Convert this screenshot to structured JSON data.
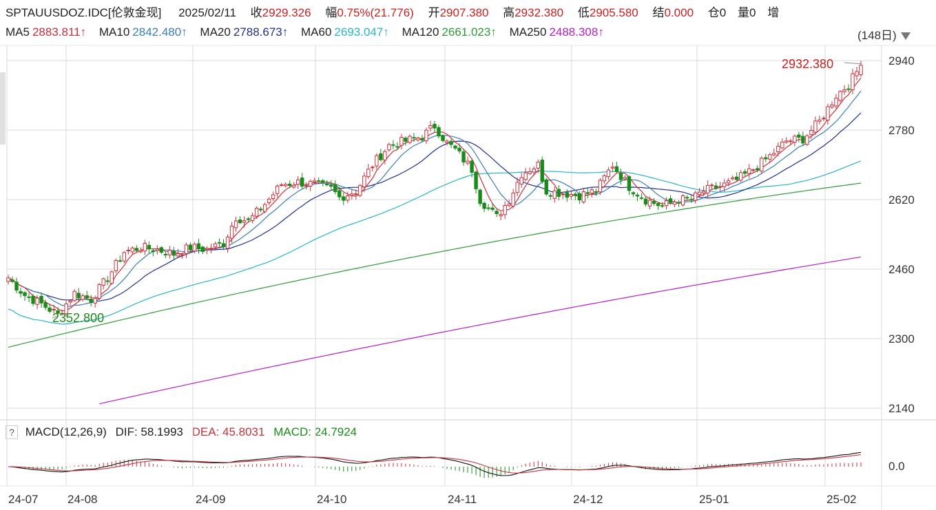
{
  "header": {
    "symbol": "SPTAUUSDOZ.IDC[伦敦金现]",
    "date": "2025/02/11",
    "close_label": "收",
    "close_value": "2929.326",
    "change_label": "幅",
    "change_value": "0.75%(21.776)",
    "open_label": "开",
    "open_value": "2907.380",
    "high_label": "高",
    "high_value": "2932.380",
    "low_label": "低",
    "low_value": "2905.580",
    "settle_label": "结",
    "settle_value": "0.000",
    "position_label": "仓",
    "position_value": "0",
    "volume_label": "量",
    "volume_value": "0",
    "increase_label": "增"
  },
  "ma_bar": {
    "items": [
      {
        "label": "MA5",
        "value": "2883.811↑",
        "color": "#c8303a"
      },
      {
        "label": "MA10",
        "value": "2842.480↑",
        "color": "#3a7db5"
      },
      {
        "label": "MA20",
        "value": "2788.673↑",
        "color": "#1f2f8a"
      },
      {
        "label": "MA60",
        "value": "2693.047↑",
        "color": "#2bb4c8"
      },
      {
        "label": "MA120",
        "value": "2661.023↑",
        "color": "#2e9a38"
      },
      {
        "label": "MA250",
        "value": "2488.308↑",
        "color": "#b21fc0"
      }
    ],
    "period": "(148日)"
  },
  "macd_bar": {
    "help": "?",
    "title": "MACD(12,26,9)",
    "dif_label": "DIF: 58.1993",
    "dea_label": "DEA: 45.8031",
    "macd_label": "MACD: 24.7924"
  },
  "colors": {
    "up": "#c8303a",
    "down": "#1a8a1a",
    "grid": "#d8d8d8",
    "ma5": "#c8303a",
    "ma10": "#3a7db5",
    "ma20": "#1f2f8a",
    "ma60": "#2bb4c8",
    "ma120": "#2e9a38",
    "ma250": "#b21fc0",
    "dif": "#111111",
    "dea": "#c8303a"
  },
  "chart_data": [
    {
      "type": "candlestick",
      "title": "SPTAUUSDOZ.IDC[伦敦金现]",
      "y_ticks": [
        "2940",
        "2780",
        "2620",
        "2460",
        "2300",
        "2140"
      ],
      "ylim": [
        2120,
        2960
      ],
      "x_tick_labels": [
        "24-07",
        "24-08",
        "24-09",
        "24-10",
        "24-11",
        "24-12",
        "25-01",
        "25-02"
      ],
      "annotations": {
        "high_label": "2932.380",
        "low_label": "2352.800"
      },
      "anchors": [
        [
          0,
          2440
        ],
        [
          4,
          2400
        ],
        [
          8,
          2380
        ],
        [
          12,
          2355
        ],
        [
          16,
          2405
        ],
        [
          20,
          2390
        ],
        [
          24,
          2440
        ],
        [
          28,
          2500
        ],
        [
          32,
          2510
        ],
        [
          36,
          2505
        ],
        [
          40,
          2495
        ],
        [
          44,
          2510
        ],
        [
          48,
          2505
        ],
        [
          52,
          2520
        ],
        [
          55,
          2580
        ],
        [
          58,
          2570
        ],
        [
          62,
          2610
        ],
        [
          66,
          2655
        ],
        [
          70,
          2660
        ],
        [
          74,
          2655
        ],
        [
          78,
          2645
        ],
        [
          80,
          2625
        ],
        [
          84,
          2640
        ],
        [
          88,
          2700
        ],
        [
          92,
          2745
        ],
        [
          96,
          2755
        ],
        [
          100,
          2765
        ],
        [
          103,
          2790
        ],
        [
          106,
          2750
        ],
        [
          108,
          2735
        ],
        [
          112,
          2690
        ],
        [
          114,
          2620
        ],
        [
          118,
          2580
        ],
        [
          121,
          2620
        ],
        [
          124,
          2680
        ],
        [
          128,
          2700
        ],
        [
          130,
          2640
        ],
        [
          134,
          2635
        ],
        [
          138,
          2630
        ],
        [
          142,
          2640
        ],
        [
          146,
          2700
        ],
        [
          150,
          2650
        ],
        [
          154,
          2620
        ],
        [
          158,
          2605
        ],
        [
          162,
          2620
        ],
        [
          165,
          2620
        ],
        [
          168,
          2640
        ],
        [
          172,
          2650
        ],
        [
          176,
          2665
        ],
        [
          180,
          2690
        ],
        [
          184,
          2720
        ],
        [
          188,
          2755
        ],
        [
          192,
          2760
        ],
        [
          196,
          2800
        ],
        [
          200,
          2860
        ],
        [
          203,
          2885
        ],
        [
          206,
          2929
        ]
      ],
      "ma120_range": [
        2280,
        2658
      ],
      "ma250_range": [
        2150,
        2488
      ],
      "series_legend": [
        "MA5",
        "MA10",
        "MA20",
        "MA60",
        "MA120",
        "MA250"
      ]
    },
    {
      "type": "macd",
      "y_ticks": [
        "0.0"
      ],
      "legend": [
        "DIF: 58.1993",
        "DEA: 45.8031",
        "MACD: 24.7924"
      ]
    }
  ]
}
